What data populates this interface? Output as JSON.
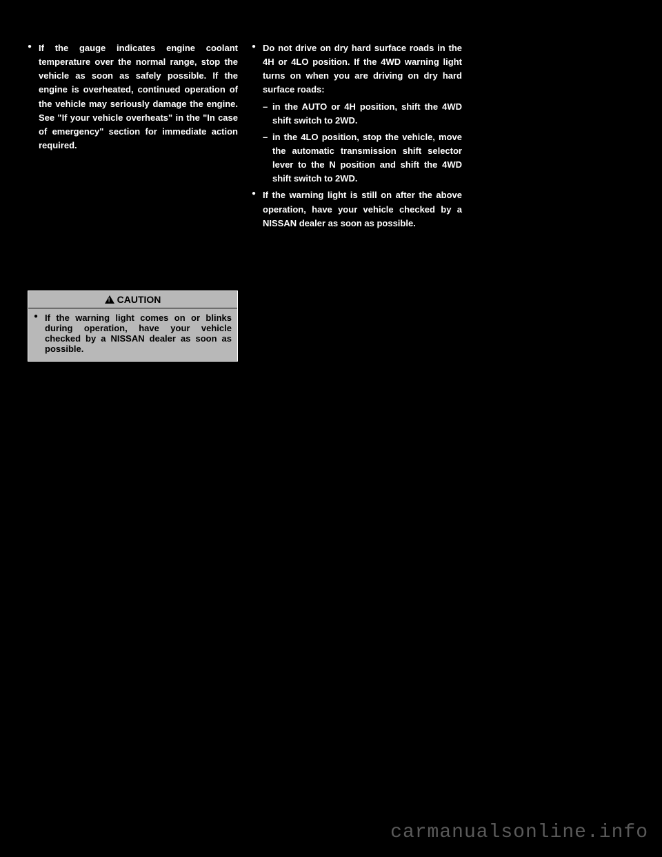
{
  "col1": {
    "box1": {
      "item1": "If the gauge indicates engine coolant temperature over the normal range, stop the vehicle as soon as safely possible. If the engine is overheated, continued operation of the vehicle may seriously damage the engine. See \"If your vehicle overheats\" in the \"In case of emergency\" section for immediate action required."
    },
    "caution": {
      "label": "CAUTION",
      "item1": "If the warning light comes on or blinks during operation, have your vehicle checked by a NISSAN dealer as soon as possible."
    }
  },
  "col2": {
    "box1": {
      "item1_lead": "Do not drive on dry hard surface roads in the 4H or 4LO position. If the 4WD warning light turns on when you are driving on dry hard surface roads:",
      "sub1": "in the AUTO or 4H position, shift the 4WD shift switch to 2WD.",
      "sub2": "in the 4LO position, stop the vehicle, move the automatic transmission shift selector lever to the N position and shift the 4WD shift switch to 2WD.",
      "item2": "If the warning light is still on after the above operation, have your vehicle checked by a NISSAN dealer as soon as possible."
    }
  },
  "watermark": "carmanualsonline.info"
}
